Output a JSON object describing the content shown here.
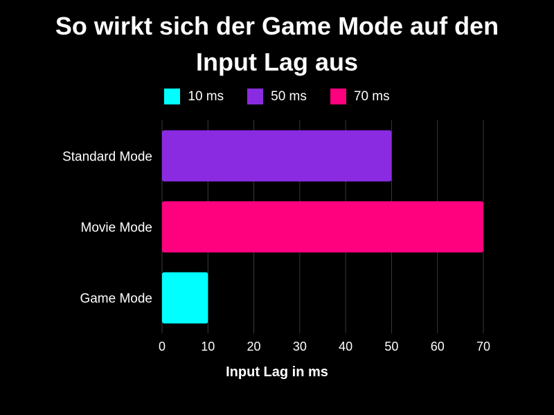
{
  "chart_data": {
    "type": "bar",
    "orientation": "horizontal",
    "title": [
      "So wirkt sich der Game Mode auf den",
      "Input Lag aus"
    ],
    "xlabel": "Input Lag in ms",
    "ylabel": "",
    "categories": [
      "Standard Mode",
      "Movie Mode",
      "Game Mode"
    ],
    "values": [
      50,
      70,
      10
    ],
    "bar_colors": [
      "#8A2BE2",
      "#FF007F",
      "#00FFFF"
    ],
    "xlim": [
      0,
      70
    ],
    "x_ticks": [
      0,
      10,
      20,
      30,
      40,
      50,
      60,
      70
    ],
    "grid": "vertical",
    "legend_position": "top",
    "legend": [
      {
        "label": "10 ms",
        "color": "#00FFFF"
      },
      {
        "label": "50 ms",
        "color": "#8A2BE2"
      },
      {
        "label": "70 ms",
        "color": "#FF007F"
      }
    ]
  },
  "colors": {
    "background": "#000000",
    "text": "#ffffff",
    "grid": "#3a3a3a"
  }
}
